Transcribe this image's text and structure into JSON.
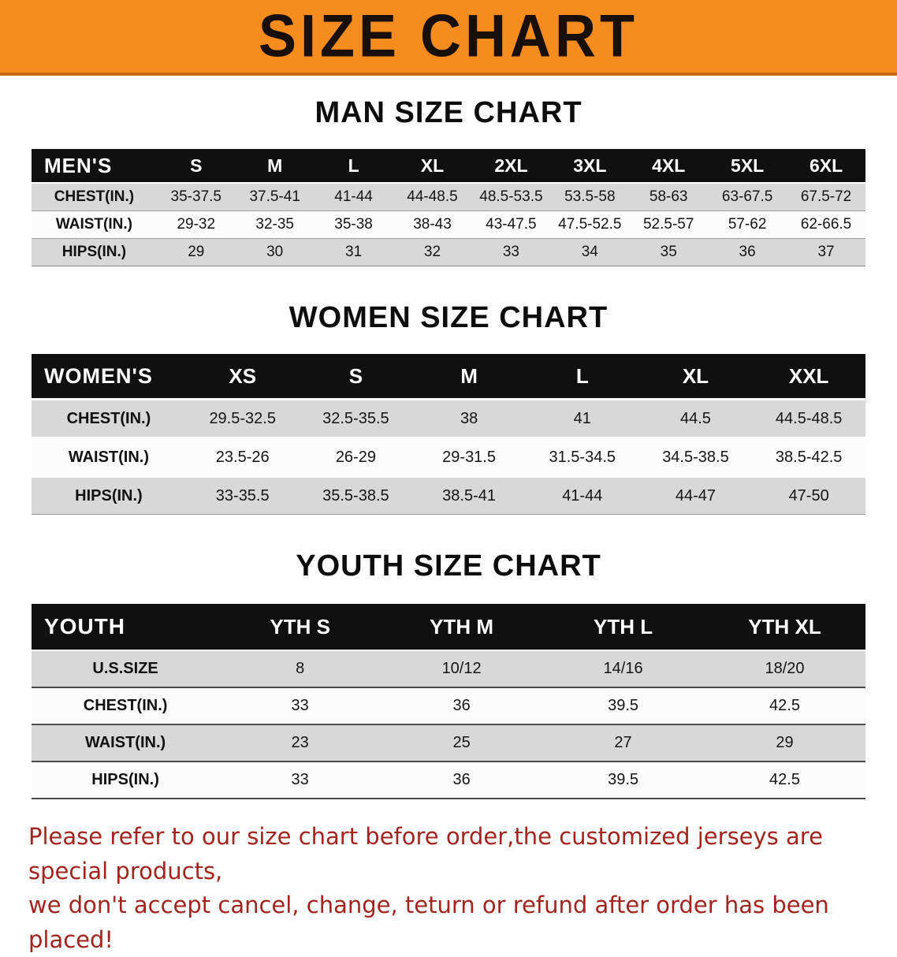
{
  "banner": {
    "title": "SIZE CHART",
    "bg_color": "#f68b1e"
  },
  "sections": [
    {
      "heading": "MAN SIZE CHART",
      "table": {
        "header": [
          "MEN'S",
          "S",
          "M",
          "L",
          "XL",
          "2XL",
          "3XL",
          "4XL",
          "5XL",
          "6XL"
        ],
        "rows": [
          {
            "label": "CHEST(IN.)",
            "values": [
              "35-37.5",
              "37.5-41",
              "41-44",
              "44-48.5",
              "48.5-53.5",
              "53.5-58",
              "58-63",
              "63-67.5",
              "67.5-72"
            ]
          },
          {
            "label": "WAIST(IN.)",
            "values": [
              "29-32",
              "32-35",
              "35-38",
              "38-43",
              "43-47.5",
              "47.5-52.5",
              "52.5-57",
              "57-62",
              "62-66.5"
            ]
          },
          {
            "label": "HIPS(IN.)",
            "values": [
              "29",
              "30",
              "31",
              "32",
              "33",
              "34",
              "35",
              "36",
              "37"
            ]
          }
        ]
      }
    },
    {
      "heading": "WOMEN SIZE CHART",
      "table": {
        "header": [
          "WOMEN'S",
          "XS",
          "S",
          "M",
          "L",
          "XL",
          "XXL"
        ],
        "rows": [
          {
            "label": "CHEST(IN.)",
            "values": [
              "29.5-32.5",
              "32.5-35.5",
              "38",
              "41",
              "44.5",
              "44.5-48.5"
            ]
          },
          {
            "label": "WAIST(IN.)",
            "values": [
              "23.5-26",
              "26-29",
              "29-31.5",
              "31.5-34.5",
              "34.5-38.5",
              "38.5-42.5"
            ]
          },
          {
            "label": "HIPS(IN.)",
            "values": [
              "33-35.5",
              "35.5-38.5",
              "38.5-41",
              "41-44",
              "44-47",
              "47-50"
            ]
          }
        ]
      }
    },
    {
      "heading": "YOUTH SIZE CHART",
      "table": {
        "header": [
          "YOUTH",
          "YTH S",
          "YTH M",
          "YTH L",
          "YTH XL"
        ],
        "rows": [
          {
            "label": "U.S.SIZE",
            "values": [
              "8",
              "10/12",
              "14/16",
              "18/20"
            ]
          },
          {
            "label": "CHEST(IN.)",
            "values": [
              "33",
              "36",
              "39.5",
              "42.5"
            ]
          },
          {
            "label": "WAIST(IN.)",
            "values": [
              "23",
              "25",
              "27",
              "29"
            ]
          },
          {
            "label": "HIPS(IN.)",
            "values": [
              "33",
              "36",
              "39.5",
              "42.5"
            ]
          }
        ]
      }
    }
  ],
  "disclaimer": {
    "line1": "Please refer to our size chart before order,the customized jerseys are special products,",
    "line2": "we don't accept cancel, change, teturn or refund after order has been placed!",
    "color": "#a3241e"
  }
}
